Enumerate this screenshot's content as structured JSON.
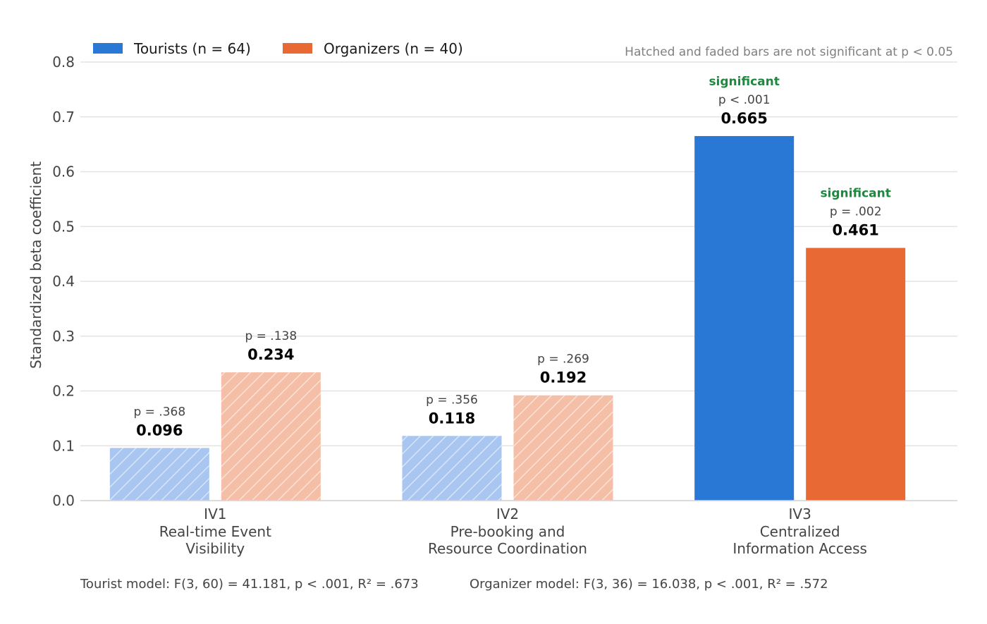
{
  "chart_data": {
    "type": "bar",
    "ylabel": "Standardized beta coefficient",
    "ylim": [
      0,
      0.8
    ],
    "yticks": [
      "0.0",
      "0.1",
      "0.2",
      "0.3",
      "0.4",
      "0.5",
      "0.6",
      "0.7",
      "0.8"
    ],
    "grid": true,
    "legend_position": "top-left",
    "note": "Hatched and faded bars are not significant at p < 0.05",
    "categories": [
      {
        "code": "IV1",
        "line1": "Real-time Event",
        "line2": "Visibility"
      },
      {
        "code": "IV2",
        "line1": "Pre-booking and",
        "line2": "Resource Coordination"
      },
      {
        "code": "IV3",
        "line1": "Centralized",
        "line2": "Information Access"
      }
    ],
    "series": [
      {
        "name": "Tourists (n = 64)",
        "color": "#2a78d6",
        "faded_color": "#a8c6ef",
        "values": [
          0.096,
          0.118,
          0.665
        ],
        "value_labels": [
          "0.096",
          "0.118",
          "0.665"
        ],
        "p_labels": [
          "p = .368",
          "p = .356",
          "p < .001"
        ],
        "significant": [
          false,
          false,
          true
        ]
      },
      {
        "name": "Organizers (n = 40)",
        "color": "#e96935",
        "faded_color": "#f5bea7",
        "values": [
          0.234,
          0.192,
          0.461
        ],
        "value_labels": [
          "0.234",
          "0.192",
          "0.461"
        ],
        "p_labels": [
          "p = .138",
          "p = .269",
          "p = .002"
        ],
        "significant": [
          false,
          false,
          true
        ]
      }
    ],
    "significant_label": "significant",
    "footer": [
      "Tourist model: F(3, 60) = 41.181, p < .001, R² = .673",
      "Organizer model: F(3, 36) = 16.038, p < .001, R² = .572"
    ]
  }
}
